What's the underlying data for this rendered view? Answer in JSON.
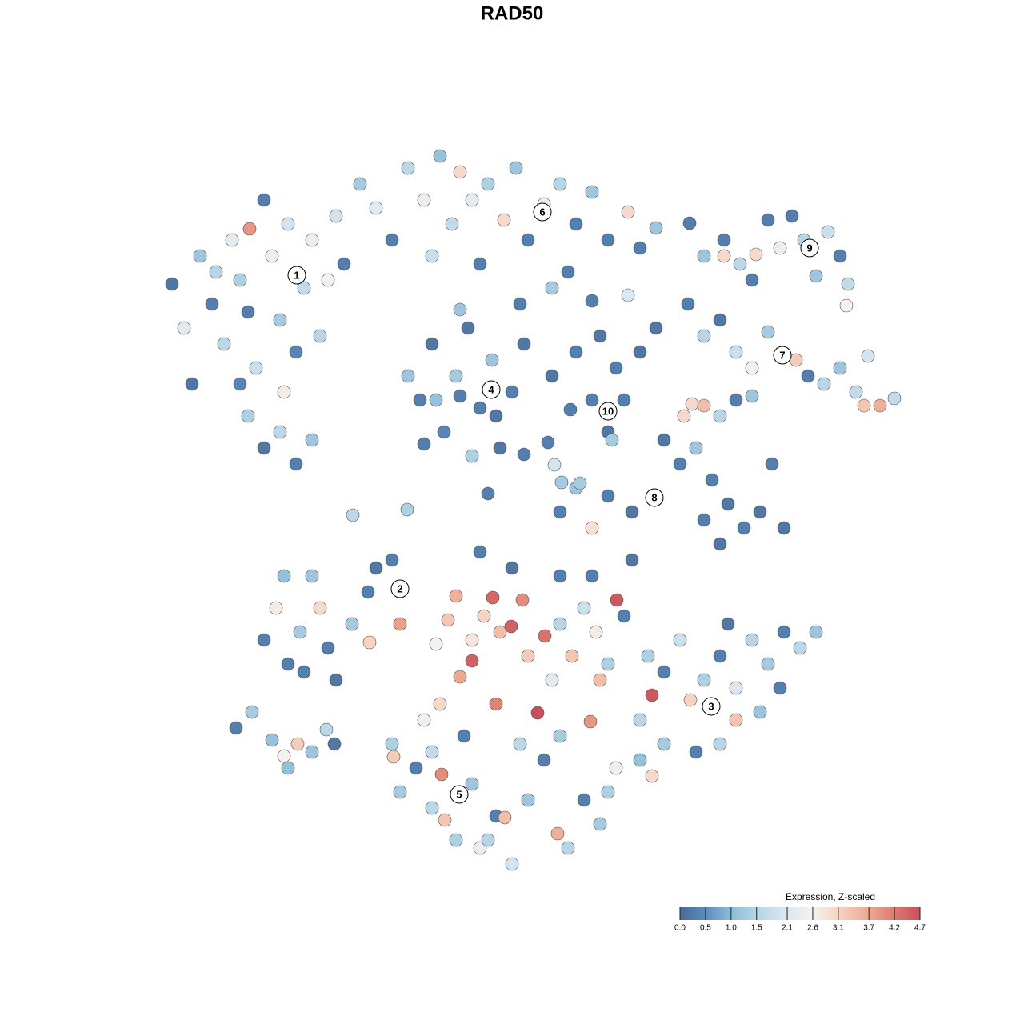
{
  "chart_data": {
    "type": "scatter",
    "title": "RAD50",
    "xlim": [
      190,
      1130
    ],
    "ylim": [
      1100,
      180
    ],
    "x": [
      215,
      230,
      250,
      265,
      280,
      290,
      300,
      310,
      320,
      330,
      340,
      350,
      360,
      370,
      380,
      390,
      400,
      410,
      420,
      430,
      310,
      330,
      350,
      370,
      390,
      240,
      300,
      312,
      355,
      270,
      450,
      470,
      490,
      510,
      530,
      550,
      565,
      575,
      590,
      610,
      630,
      645,
      660,
      680,
      700,
      720,
      740,
      760,
      785,
      800,
      820,
      540,
      600,
      690,
      710,
      510,
      525,
      540,
      555,
      570,
      585,
      600,
      615,
      625,
      640,
      655,
      530,
      590,
      620,
      575,
      545,
      690,
      720,
      750,
      770,
      760,
      780,
      800,
      740,
      765,
      820,
      880,
      905,
      905,
      925,
      945,
      960,
      975,
      990,
      1005,
      1020,
      1035,
      1050,
      1060,
      1058,
      940,
      860,
      880,
      900,
      920,
      940,
      960,
      980,
      995,
      1010,
      1030,
      1050,
      1070,
      1080,
      1100,
      1118,
      1085,
      865,
      880,
      900,
      920,
      940,
      830,
      850,
      870,
      890,
      910,
      930,
      950,
      965,
      980,
      880,
      900,
      760,
      790,
      740,
      700,
      720,
      855,
      330,
      345,
      360,
      375,
      390,
      400,
      410,
      420,
      440,
      460,
      470,
      490,
      500,
      462,
      355,
      380,
      295,
      315,
      340,
      355,
      372,
      390,
      408,
      418,
      360,
      560,
      570,
      590,
      590,
      605,
      616,
      625,
      639,
      653,
      660,
      672,
      681,
      690,
      700,
      715,
      730,
      745,
      760,
      771,
      780,
      620,
      575,
      550,
      530,
      545,
      750,
      738,
      700,
      640,
      600,
      740,
      790,
      815,
      800,
      810,
      830,
      850,
      863,
      880,
      900,
      920,
      940,
      960,
      980,
      1000,
      1020,
      920,
      900,
      870,
      830,
      800,
      815,
      950,
      975,
      910,
      490,
      492,
      500,
      520,
      540,
      552,
      556,
      570,
      590,
      600,
      620,
      631,
      640,
      660,
      680,
      697,
      710,
      730,
      750,
      760,
      770,
      540,
      580,
      650,
      700,
      610,
      441,
      509,
      610,
      693,
      702,
      725,
      655,
      685,
      862,
      740,
      785,
      713,
      575,
      650
    ],
    "y": [
      355,
      410,
      320,
      380,
      430,
      300,
      350,
      390,
      460,
      250,
      320,
      400,
      280,
      440,
      360,
      300,
      420,
      350,
      270,
      330,
      520,
      560,
      540,
      580,
      550,
      480,
      480,
      286,
      490,
      340,
      230,
      260,
      300,
      210,
      250,
      195,
      280,
      215,
      250,
      230,
      275,
      210,
      300,
      255,
      230,
      280,
      240,
      300,
      265,
      310,
      285,
      320,
      330,
      360,
      340,
      470,
      500,
      430,
      540,
      470,
      410,
      510,
      450,
      560,
      490,
      430,
      555,
      570,
      520,
      495,
      500,
      470,
      440,
      420,
      460,
      540,
      500,
      440,
      500,
      550,
      410,
      320,
      300,
      320,
      330,
      318,
      275,
      310,
      270,
      300,
      345,
      290,
      320,
      355,
      382,
      350,
      380,
      420,
      400,
      440,
      460,
      415,
      445,
      450,
      470,
      480,
      460,
      490,
      507,
      507,
      498,
      445,
      505,
      507,
      520,
      500,
      495,
      550,
      580,
      560,
      600,
      630,
      660,
      640,
      580,
      660,
      650,
      680,
      620,
      640,
      660,
      640,
      610,
      520,
      800,
      760,
      830,
      790,
      720,
      760,
      810,
      850,
      780,
      740,
      710,
      700,
      780,
      803,
      720,
      840,
      910,
      890,
      925,
      945,
      930,
      940,
      912,
      930,
      960,
      775,
      745,
      800,
      826,
      770,
      747,
      790,
      783,
      750,
      820,
      891,
      795,
      850,
      780,
      820,
      760,
      790,
      830,
      750,
      770,
      880,
      846,
      880,
      900,
      805,
      850,
      902,
      720,
      710,
      690,
      720,
      700,
      869,
      900,
      820,
      840,
      800,
      875,
      850,
      820,
      860,
      800,
      830,
      790,
      810,
      790,
      900,
      930,
      940,
      930,
      950,
      970,
      890,
      860,
      780,
      930,
      946,
      990,
      960,
      1010,
      968,
      1025,
      1050,
      980,
      1060,
      1020,
      1022,
      1080,
      1000,
      950,
      1042,
      1060,
      1000,
      1030,
      990,
      960,
      940,
      920,
      930,
      920,
      1050,
      644,
      637,
      617,
      581,
      603,
      604,
      568,
      553,
      279,
      376,
      369,
      512,
      387,
      380
    ],
    "values": [
      0.2,
      2.2,
      1.2,
      0.3,
      1.6,
      2.3,
      1.4,
      0.3,
      1.8,
      0.3,
      2.5,
      1.3,
      2.0,
      0.4,
      1.7,
      2.4,
      1.5,
      2.6,
      1.9,
      0.3,
      1.4,
      0.2,
      1.6,
      0.3,
      1.2,
      0.2,
      0.4,
      3.9,
      2.7,
      1.5,
      1.3,
      2.2,
      0.3,
      1.6,
      2.4,
      1.1,
      1.7,
      3.0,
      2.3,
      1.4,
      3.0,
      1.2,
      0.3,
      2.4,
      1.5,
      0.3,
      1.2,
      0.3,
      3.0,
      0.3,
      1.2,
      1.8,
      0.3,
      1.3,
      0.3,
      1.2,
      0.3,
      0.2,
      0.4,
      1.3,
      0.2,
      0.3,
      1.2,
      0.2,
      0.3,
      0.2,
      0.3,
      1.4,
      0.2,
      0.3,
      1.1,
      0.2,
      0.3,
      0.2,
      0.3,
      0.2,
      0.3,
      0.2,
      0.3,
      1.3,
      0.2,
      1.2,
      0.3,
      3.0,
      1.6,
      3.0,
      0.3,
      2.4,
      0.3,
      1.5,
      1.2,
      1.8,
      0.3,
      1.7,
      2.6,
      0.3,
      0.3,
      1.5,
      0.2,
      1.8,
      2.6,
      1.3,
      2.2,
      3.2,
      0.3,
      1.5,
      1.2,
      1.7,
      3.3,
      3.6,
      1.7,
      2.0,
      3.0,
      3.4,
      1.5,
      0.3,
      1.2,
      0.2,
      0.3,
      1.2,
      0.3,
      0.2,
      0.3,
      0.2,
      0.3,
      0.2,
      0.3,
      0.2,
      0.3,
      0.2,
      2.9,
      0.3,
      1.2,
      3.0,
      0.3,
      2.7,
      0.3,
      1.3,
      1.2,
      3.0,
      0.3,
      0.2,
      1.3,
      0.3,
      0.2,
      0.3,
      3.8,
      3.1,
      1.1,
      0.3,
      0.3,
      1.3,
      1.1,
      2.6,
      3.2,
      1.2,
      1.6,
      0.2,
      1.1,
      3.3,
      3.6,
      2.8,
      4.5,
      3.1,
      4.4,
      3.4,
      4.5,
      4.0,
      3.2,
      4.7,
      4.3,
      2.2,
      1.5,
      3.3,
      1.8,
      2.7,
      1.4,
      4.6,
      0.3,
      4.1,
      3.7,
      3.0,
      2.5,
      2.6,
      3.4,
      3.9,
      0.3,
      0.2,
      0.3,
      0.3,
      0.2,
      4.6,
      1.6,
      1.4,
      0.3,
      1.8,
      3.1,
      1.4,
      0.3,
      2.1,
      1.5,
      1.3,
      0.3,
      1.6,
      1.2,
      3.3,
      1.5,
      0.3,
      1.3,
      1.1,
      3.0,
      1.2,
      0.3,
      0.2,
      1.4,
      3.2,
      1.3,
      0.3,
      1.6,
      4.0,
      3.3,
      1.4,
      1.2,
      2.4,
      0.3,
      3.4,
      2.0,
      1.2,
      0.3,
      3.6,
      1.5,
      0.3,
      1.3,
      1.4,
      2.5,
      1.7,
      0.3,
      1.6,
      1.3,
      1.5,
      1.6,
      1.4,
      0.3,
      2.0,
      1.3,
      1.3,
      0.3,
      0.3,
      0.3,
      0.3,
      2.1,
      0.3,
      1.2,
      0.3
    ],
    "cluster_labels": [
      {
        "label": "1",
        "x": 371,
        "y": 344
      },
      {
        "label": "2",
        "x": 500,
        "y": 736
      },
      {
        "label": "3",
        "x": 889,
        "y": 883
      },
      {
        "label": "4",
        "x": 614,
        "y": 487
      },
      {
        "label": "5",
        "x": 574,
        "y": 993
      },
      {
        "label": "6",
        "x": 678,
        "y": 265
      },
      {
        "label": "7",
        "x": 978,
        "y": 444
      },
      {
        "label": "8",
        "x": 818,
        "y": 622
      },
      {
        "label": "9",
        "x": 1012,
        "y": 310
      },
      {
        "label": "10",
        "x": 760,
        "y": 514
      }
    ],
    "colorbar": {
      "title": "Expression, Z-scaled",
      "ticks": [
        {
          "value": 0,
          "label": "0.0"
        },
        0.5,
        {
          "value": 1,
          "label": "1.0"
        },
        1.5,
        2.1,
        2.6,
        3.1,
        3.7,
        4.2,
        4.7
      ],
      "colors": [
        "#4a6a94",
        "#5b8cbd",
        "#8cbcd9",
        "#b6d5e6",
        "#dbe8f1",
        "#f5f1ee",
        "#f7d3c2",
        "#eda98f",
        "#dc7a6f",
        "#c8505c"
      ]
    }
  }
}
